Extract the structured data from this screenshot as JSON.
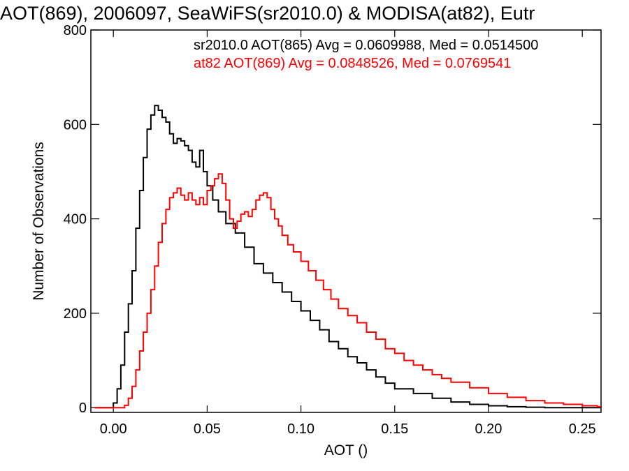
{
  "chart_data": {
    "type": "line",
    "title": "AOT(869), 2006097, SeaWiFS(sr2010.0) & MODISA(at82), Eutr",
    "xlabel": "AOT ()",
    "ylabel": "Number of Observations",
    "xlim": [
      -0.012,
      0.26
    ],
    "ylim": [
      -10,
      800
    ],
    "xticks": [
      0.0,
      0.05,
      0.1,
      0.15,
      0.2,
      0.25
    ],
    "xtick_labels": [
      "0.00",
      "0.05",
      "0.10",
      "0.15",
      "0.20",
      "0.25"
    ],
    "yticks": [
      0,
      200,
      400,
      600,
      800
    ],
    "ytick_labels": [
      "0",
      "200",
      "400",
      "600",
      "800"
    ],
    "grid": false,
    "legend_position": "top-right",
    "series": [
      {
        "name": "sr2010.0 AOT(865) Avg = 0.0609988, Med = 0.0514500",
        "color": "#000000",
        "step": "post",
        "x": [
          -0.01,
          0.0,
          0.002,
          0.004,
          0.006,
          0.008,
          0.01,
          0.012,
          0.014,
          0.016,
          0.018,
          0.02,
          0.022,
          0.024,
          0.026,
          0.028,
          0.03,
          0.032,
          0.034,
          0.036,
          0.038,
          0.04,
          0.042,
          0.044,
          0.046,
          0.048,
          0.05,
          0.053,
          0.056,
          0.06,
          0.065,
          0.07,
          0.075,
          0.08,
          0.085,
          0.09,
          0.095,
          0.1,
          0.105,
          0.11,
          0.115,
          0.12,
          0.125,
          0.13,
          0.135,
          0.14,
          0.145,
          0.15,
          0.16,
          0.17,
          0.18,
          0.19,
          0.2,
          0.21,
          0.22,
          0.23,
          0.24,
          0.25,
          0.258
        ],
        "y": [
          0,
          10,
          40,
          90,
          160,
          220,
          290,
          380,
          460,
          530,
          590,
          620,
          640,
          630,
          615,
          605,
          580,
          560,
          570,
          565,
          555,
          545,
          520,
          510,
          545,
          500,
          470,
          440,
          415,
          390,
          370,
          340,
          305,
          285,
          265,
          245,
          225,
          205,
          185,
          165,
          140,
          125,
          108,
          95,
          80,
          65,
          52,
          40,
          30,
          20,
          12,
          7,
          4,
          2,
          1,
          0,
          0,
          0,
          0
        ]
      },
      {
        "name": "at82 AOT(869) Avg = 0.0848526, Med = 0.0769541",
        "color": "#ff0000",
        "step": "post",
        "x": [
          -0.01,
          0.006,
          0.008,
          0.01,
          0.012,
          0.014,
          0.016,
          0.018,
          0.02,
          0.022,
          0.024,
          0.026,
          0.028,
          0.03,
          0.032,
          0.034,
          0.036,
          0.038,
          0.04,
          0.042,
          0.044,
          0.046,
          0.048,
          0.05,
          0.052,
          0.054,
          0.056,
          0.058,
          0.06,
          0.062,
          0.064,
          0.066,
          0.068,
          0.07,
          0.072,
          0.074,
          0.076,
          0.078,
          0.08,
          0.082,
          0.084,
          0.086,
          0.088,
          0.09,
          0.093,
          0.096,
          0.1,
          0.104,
          0.108,
          0.112,
          0.116,
          0.12,
          0.125,
          0.13,
          0.135,
          0.14,
          0.145,
          0.15,
          0.155,
          0.16,
          0.165,
          0.17,
          0.175,
          0.18,
          0.19,
          0.2,
          0.21,
          0.22,
          0.23,
          0.24,
          0.25,
          0.258
        ],
        "y": [
          0,
          5,
          20,
          45,
          80,
          120,
          160,
          200,
          250,
          300,
          350,
          390,
          420,
          445,
          455,
          465,
          450,
          440,
          455,
          440,
          430,
          445,
          430,
          460,
          470,
          485,
          495,
          475,
          440,
          400,
          380,
          395,
          410,
          415,
          405,
          420,
          440,
          450,
          455,
          445,
          420,
          400,
          385,
          365,
          345,
          330,
          310,
          290,
          270,
          250,
          230,
          210,
          195,
          180,
          160,
          145,
          125,
          115,
          100,
          90,
          80,
          70,
          62,
          54,
          42,
          30,
          22,
          15,
          10,
          7,
          4,
          2
        ]
      }
    ]
  }
}
